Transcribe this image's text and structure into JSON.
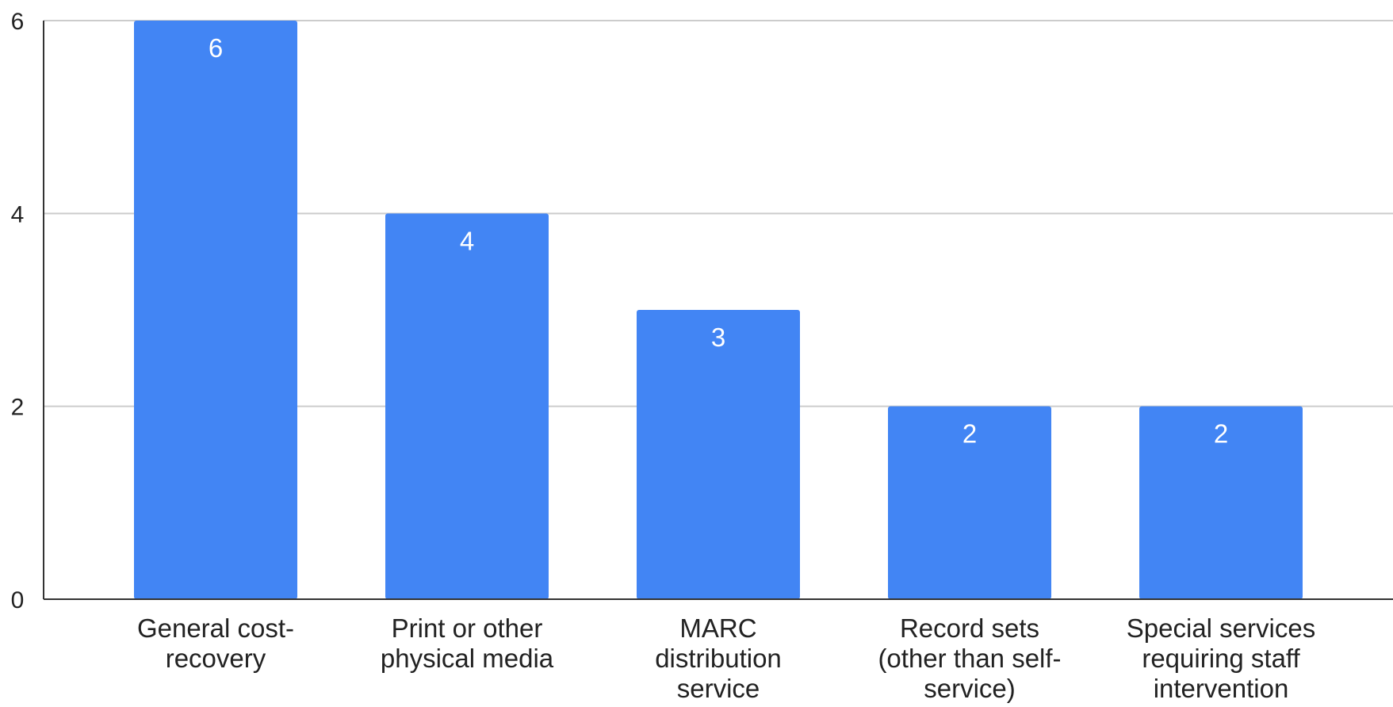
{
  "chart_data": {
    "type": "bar",
    "title": "",
    "xlabel": "",
    "ylabel": "",
    "categories": [
      [
        "General cost-",
        "recovery"
      ],
      [
        "Print or other",
        "physical media"
      ],
      [
        "MARC",
        "distribution",
        "service"
      ],
      [
        "Record sets",
        "(other than self-",
        "service)"
      ],
      [
        "Special services",
        "requiring staff",
        "intervention"
      ]
    ],
    "values": [
      6,
      4,
      3,
      2,
      2
    ],
    "data_labels": [
      "6",
      "4",
      "3",
      "2",
      "2"
    ],
    "ylim": [
      0,
      6
    ],
    "yticks": [
      0,
      2,
      4,
      6
    ],
    "ytick_labels": [
      "0",
      "2",
      "4",
      "6"
    ],
    "grid": true,
    "legend": "none",
    "bar_color": "#4285f4"
  }
}
